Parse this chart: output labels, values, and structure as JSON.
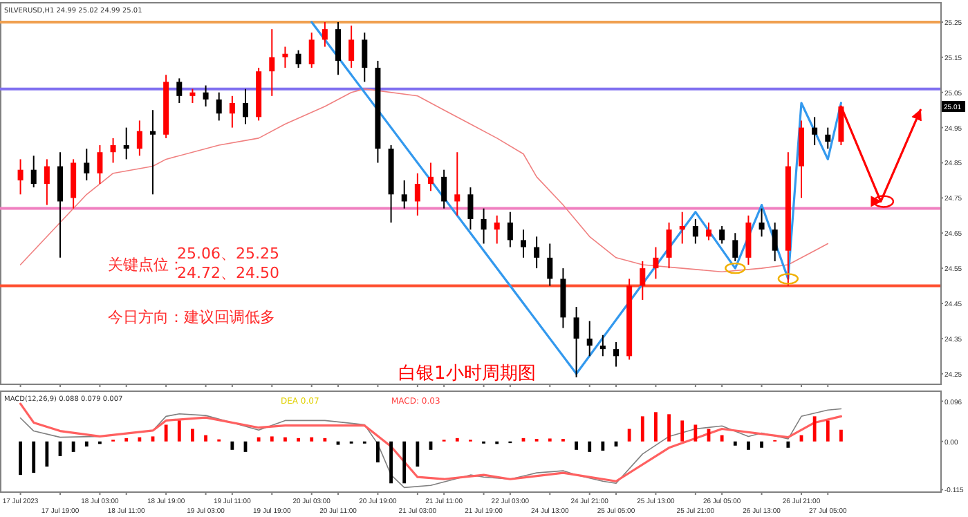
{
  "chart_data": [
    {
      "type": "candlestick",
      "title": "SILVERUSD,H1 24.99 25.02 24.99 25.01",
      "tick_labels": "y",
      "ylim": [
        24.22,
        25.305
      ],
      "yticks": [
        25.25,
        25.15,
        25.05,
        24.95,
        24.85,
        24.75,
        24.65,
        24.55,
        24.45,
        24.35,
        24.25
      ],
      "ohlc": [
        [
          24.8,
          24.86,
          24.76,
          24.83
        ],
        [
          24.83,
          24.87,
          24.78,
          24.79
        ],
        [
          24.79,
          24.86,
          24.73,
          24.84
        ],
        [
          24.84,
          24.88,
          24.58,
          24.74
        ],
        [
          24.75,
          24.86,
          24.72,
          24.85
        ],
        [
          24.85,
          24.89,
          24.8,
          24.82
        ],
        [
          24.82,
          24.9,
          24.79,
          24.88
        ],
        [
          24.88,
          24.92,
          24.85,
          24.9
        ],
        [
          24.9,
          24.95,
          24.86,
          24.89
        ],
        [
          24.89,
          24.97,
          24.87,
          24.94
        ],
        [
          24.94,
          25.0,
          24.76,
          24.93
        ],
        [
          24.93,
          25.1,
          24.92,
          25.08
        ],
        [
          25.08,
          25.09,
          25.02,
          25.04
        ],
        [
          25.04,
          25.06,
          25.02,
          25.05
        ],
        [
          25.05,
          25.07,
          25.01,
          25.03
        ],
        [
          25.03,
          25.05,
          24.97,
          24.99
        ],
        [
          24.99,
          25.04,
          24.95,
          25.02
        ],
        [
          25.02,
          25.06,
          24.96,
          24.98
        ],
        [
          24.98,
          25.12,
          24.97,
          25.11
        ],
        [
          25.11,
          25.23,
          25.04,
          25.15
        ],
        [
          25.15,
          25.18,
          25.12,
          25.16
        ],
        [
          25.16,
          25.17,
          25.12,
          25.13
        ],
        [
          25.13,
          25.22,
          25.12,
          25.2
        ],
        [
          25.2,
          25.25,
          25.18,
          25.23
        ],
        [
          25.23,
          25.25,
          25.1,
          25.14
        ],
        [
          25.14,
          25.24,
          25.12,
          25.2
        ],
        [
          25.2,
          25.22,
          25.08,
          25.12
        ],
        [
          25.12,
          25.14,
          24.85,
          24.89
        ],
        [
          24.89,
          24.9,
          24.68,
          24.76
        ],
        [
          24.76,
          24.8,
          24.72,
          24.74
        ],
        [
          24.74,
          24.82,
          24.7,
          24.79
        ],
        [
          24.79,
          24.85,
          24.77,
          24.81
        ],
        [
          24.81,
          24.83,
          24.72,
          24.74
        ],
        [
          24.74,
          24.88,
          24.7,
          24.76
        ],
        [
          24.76,
          24.78,
          24.66,
          24.69
        ],
        [
          24.69,
          24.72,
          24.62,
          24.66
        ],
        [
          24.66,
          24.7,
          24.62,
          24.68
        ],
        [
          24.68,
          24.71,
          24.61,
          24.63
        ],
        [
          24.63,
          24.66,
          24.58,
          24.61
        ],
        [
          24.61,
          24.64,
          24.55,
          24.58
        ],
        [
          24.58,
          24.62,
          24.5,
          24.52
        ],
        [
          24.52,
          24.55,
          24.38,
          24.41
        ],
        [
          24.41,
          24.44,
          24.24,
          24.35
        ],
        [
          24.35,
          24.4,
          24.3,
          24.33
        ],
        [
          24.33,
          24.36,
          24.3,
          24.32
        ],
        [
          24.32,
          24.34,
          24.27,
          24.3
        ],
        [
          24.3,
          24.52,
          24.29,
          24.5
        ],
        [
          24.5,
          24.57,
          24.46,
          24.55
        ],
        [
          24.55,
          24.61,
          24.52,
          24.58
        ],
        [
          24.58,
          24.68,
          24.55,
          24.66
        ],
        [
          24.66,
          24.71,
          24.62,
          24.67
        ],
        [
          24.67,
          24.69,
          24.62,
          24.64
        ],
        [
          24.64,
          24.68,
          24.63,
          24.66
        ],
        [
          24.66,
          24.67,
          24.62,
          24.63
        ],
        [
          24.63,
          24.65,
          24.57,
          24.58
        ],
        [
          24.58,
          24.7,
          24.56,
          24.68
        ],
        [
          24.68,
          24.72,
          24.64,
          24.66
        ],
        [
          24.66,
          24.68,
          24.57,
          24.6
        ],
        [
          24.6,
          24.88,
          24.5,
          24.84
        ],
        [
          24.84,
          24.97,
          24.75,
          24.95
        ],
        [
          24.95,
          24.98,
          24.9,
          24.93
        ],
        [
          24.93,
          24.95,
          24.89,
          24.91
        ],
        [
          24.91,
          25.01,
          24.9,
          25.01
        ],
        null,
        null,
        null,
        null,
        null,
        null,
        null
      ],
      "colors": [
        "#ff0000",
        "#000000",
        "#ff0000",
        "#000000",
        "#ff0000",
        "#000000",
        "#ff0000",
        "#ff0000",
        "#000000",
        "#ff0000",
        "#000000",
        "#ff0000",
        "#000000",
        "#ff0000",
        "#000000",
        "#000000",
        "#ff0000",
        "#000000",
        "#ff0000",
        "#ff0000",
        "#ff0000",
        "#000000",
        "#ff0000",
        "#ff0000",
        "#000000",
        "#ff0000",
        "#000000",
        "#000000",
        "#000000",
        "#000000",
        "#ff0000",
        "#ff0000",
        "#000000",
        "#ff0000",
        "#000000",
        "#000000",
        "#ff0000",
        "#000000",
        "#000000",
        "#000000",
        "#000000",
        "#000000",
        "#000000",
        "#000000",
        "#000000",
        "#000000",
        "#ff0000",
        "#ff0000",
        "#ff0000",
        "#ff0000",
        "#ff0000",
        "#000000",
        "#ff0000",
        "#000000",
        "#000000",
        "#ff0000",
        "#000000",
        "#000000",
        "#ff0000",
        "#ff0000",
        "#000000",
        "#000000",
        "#ff0000",
        null,
        null,
        null,
        null,
        null,
        null,
        null
      ],
      "series": [
        {
          "type": "line",
          "color": "#f08080",
          "values": [
            24.56,
            null,
            24.64,
            null,
            null,
            24.76,
            null,
            24.82,
            null,
            null,
            24.84,
            24.86,
            null,
            null,
            null,
            24.9,
            null,
            null,
            24.92,
            null,
            24.96,
            null,
            null,
            25.01,
            null,
            25.05,
            25.06,
            null,
            null,
            null,
            25.04,
            null,
            25.0,
            null,
            24.96,
            null,
            24.92,
            null,
            24.875,
            24.81,
            null,
            24.73,
            null,
            24.64,
            null,
            24.58,
            null,
            24.56,
            null,
            null,
            24.55,
            null,
            null,
            24.54,
            null,
            null,
            24.55,
            null,
            24.56,
            null,
            24.6,
            24.62,
            null,
            null,
            null,
            null,
            null,
            null,
            null,
            null
          ]
        },
        {
          "type": "line",
          "color": "#3399ee",
          "values": [
            null,
            null,
            null,
            null,
            null,
            null,
            null,
            null,
            null,
            null,
            null,
            null,
            null,
            null,
            null,
            null,
            null,
            null,
            null,
            null,
            null,
            null,
            25.25,
            null,
            null,
            null,
            null,
            null,
            null,
            null,
            null,
            null,
            null,
            null,
            null,
            null,
            null,
            null,
            null,
            null,
            null,
            null,
            24.25,
            null,
            null,
            null,
            null,
            null,
            null,
            null,
            null,
            24.71,
            null,
            null,
            24.55,
            null,
            24.73,
            null,
            24.52,
            25.02,
            null,
            24.86,
            25.02,
            null,
            null,
            null,
            null,
            null,
            null,
            null
          ]
        },
        {
          "type": "line",
          "color": "#ff0000",
          "values": [
            null,
            null,
            null,
            null,
            null,
            null,
            null,
            null,
            null,
            null,
            null,
            null,
            null,
            null,
            null,
            null,
            null,
            null,
            null,
            null,
            null,
            null,
            null,
            null,
            null,
            null,
            null,
            null,
            null,
            null,
            null,
            null,
            null,
            null,
            null,
            null,
            null,
            null,
            null,
            null,
            null,
            null,
            null,
            null,
            null,
            null,
            null,
            null,
            null,
            null,
            null,
            null,
            null,
            null,
            null,
            null,
            null,
            null,
            null,
            null,
            null,
            null,
            25.01,
            null,
            null,
            24.74,
            null,
            null,
            25.0,
            null
          ]
        }
      ],
      "ref_lines": [
        {
          "axis": "y",
          "value": 25.25,
          "color": "#f0a050"
        },
        {
          "axis": "y",
          "value": 25.06,
          "color": "#8070f0"
        },
        {
          "axis": "y",
          "value": 24.72,
          "color": "#f080c0"
        },
        {
          "axis": "y",
          "value": 24.5,
          "color": "#ff5030"
        }
      ],
      "annotations": [
        "关键点位：",
        "25.06、25.25",
        "24.72、24.50",
        "今日方向：建议回调低多",
        "白银1小时周期图",
        {
          "text": "25.01",
          "y": 25.01
        }
      ]
    },
    {
      "type": "bar",
      "title": "MACD(12,26,9) 0.088 0.079 0.007",
      "ylim": [
        -0.121,
        0.12
      ],
      "categories": [
        "17 Jul 2023",
        null,
        null,
        "17 Jul 19:00",
        null,
        null,
        "18 Jul 03:00",
        null,
        "18 Jul 11:00",
        null,
        null,
        "18 Jul 19:00",
        null,
        null,
        "19 Jul 03:00",
        null,
        "19 Jul 11:00",
        null,
        null,
        "19 Jul 19:00",
        null,
        null,
        "20 Jul 03:00",
        null,
        "20 Jul 11:00",
        null,
        null,
        "20 Jul 19:00",
        null,
        null,
        "21 Jul 03:00",
        null,
        "21 Jul 11:00",
        null,
        null,
        "21 Jul 19:00",
        null,
        "22 Jul 03:00",
        null,
        null,
        "24 Jul 13:00",
        null,
        null,
        "24 Jul 21:00",
        null,
        "25 Jul 05:00",
        null,
        null,
        "25 Jul 13:00",
        null,
        null,
        "25 Jul 21:00",
        null,
        "26 Jul 05:00",
        null,
        null,
        "26 Jul 13:00",
        null,
        null,
        "26 Jul 21:00",
        null,
        "27 Jul 05:00",
        null,
        null,
        null,
        null,
        null,
        null,
        null,
        null
      ],
      "yticks": [
        0.096,
        {
          "value": 0,
          "label": "0.00"
        },
        -0.115
      ],
      "values": [
        -0.08,
        -0.075,
        -0.06,
        -0.035,
        -0.025,
        -0.012,
        -0.006,
        0.004,
        0.008,
        0.01,
        0.012,
        0.04,
        0.05,
        0.03,
        0.015,
        0.005,
        -0.02,
        -0.025,
        0.01,
        0.012,
        0.01,
        0.008,
        0.01,
        0.008,
        -0.008,
        -0.005,
        -0.005,
        -0.05,
        -0.1,
        -0.1,
        -0.06,
        -0.02,
        0.004,
        0.008,
        0.004,
        -0.005,
        -0.006,
        -0.004,
        0.008,
        0.006,
        0.007,
        0.006,
        -0.02,
        -0.025,
        -0.022,
        -0.012,
        0.03,
        0.06,
        0.07,
        0.065,
        0.05,
        0.04,
        0.03,
        0.015,
        -0.01,
        -0.02,
        -0.015,
        0.003,
        -0.015,
        0.015,
        0.06,
        0.05,
        0.028,
        null,
        null,
        null,
        null,
        null,
        null,
        null
      ],
      "colors": [
        "#000000",
        "#000000",
        "#000000",
        "#000000",
        "#000000",
        "#000000",
        "#000000",
        "#ff0000",
        "#ff0000",
        "#ff0000",
        "#ff0000",
        "#ff0000",
        "#ff0000",
        "#ff0000",
        "#ff0000",
        "#ff0000",
        "#000000",
        "#000000",
        "#ff0000",
        "#ff0000",
        "#ff0000",
        "#ff0000",
        "#ff0000",
        "#ff0000",
        "#000000",
        "#000000",
        "#000000",
        "#000000",
        "#000000",
        "#000000",
        "#000000",
        "#000000",
        "#ff0000",
        "#ff0000",
        "#ff0000",
        "#000000",
        "#000000",
        "#000000",
        "#ff0000",
        "#ff0000",
        "#ff0000",
        "#ff0000",
        "#000000",
        "#000000",
        "#000000",
        "#000000",
        "#ff0000",
        "#ff0000",
        "#ff0000",
        "#ff0000",
        "#ff0000",
        "#ff0000",
        "#ff0000",
        "#ff0000",
        "#000000",
        "#000000",
        "#000000",
        "#ff0000",
        "#000000",
        "#ff0000",
        "#ff0000",
        "#ff0000",
        "#ff0000",
        null,
        null,
        null,
        null,
        null,
        null,
        null
      ],
      "series": [
        {
          "type": "line",
          "color": "#808080",
          "values": [
            0.056,
            0.025,
            null,
            0.01,
            null,
            null,
            0.012,
            null,
            null,
            null,
            0.026,
            0.06,
            0.066,
            null,
            0.062,
            null,
            0.045,
            null,
            0.027,
            null,
            0.05,
            null,
            null,
            0.05,
            null,
            null,
            0.04,
            -0.006,
            -0.08,
            -0.11,
            null,
            -0.105,
            null,
            null,
            -0.08,
            -0.085,
            null,
            -0.09,
            null,
            -0.075,
            null,
            -0.07,
            -0.08,
            null,
            -0.095,
            -0.1,
            null,
            -0.03,
            null,
            0.012,
            null,
            0.03,
            null,
            0.037,
            null,
            0.012,
            0.02,
            null,
            0.006,
            0.06,
            null,
            0.075,
            0.078,
            null,
            null,
            null,
            null,
            null,
            null,
            null
          ]
        },
        {
          "type": "line",
          "color": "#ff6060",
          "values": [
            0.09,
            0.045,
            null,
            0.025,
            null,
            null,
            0.012,
            null,
            null,
            null,
            0.026,
            0.05,
            null,
            null,
            0.057,
            null,
            null,
            null,
            0.033,
            null,
            0.038,
            null,
            null,
            null,
            null,
            null,
            0.038,
            null,
            -0.012,
            null,
            -0.085,
            null,
            -0.09,
            null,
            null,
            -0.08,
            null,
            -0.09,
            null,
            null,
            null,
            -0.075,
            null,
            null,
            null,
            -0.095,
            null,
            null,
            null,
            -0.015,
            null,
            null,
            null,
            0.03,
            null,
            null,
            null,
            null,
            0.01,
            null,
            0.045,
            null,
            0.06,
            null,
            null,
            null,
            null,
            null,
            null,
            null
          ]
        }
      ],
      "annotations": [
        "DEA 0.07",
        "MACD: 0.03"
      ]
    }
  ]
}
